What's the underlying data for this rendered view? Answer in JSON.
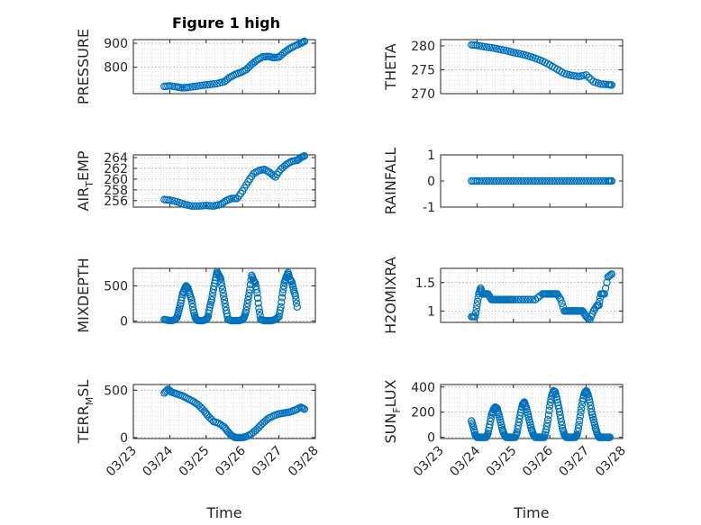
{
  "figure": {
    "title": "Figure 1 high",
    "marker_color": "#0072BD"
  },
  "chart_data": [
    {
      "id": "pressure",
      "type": "scatter",
      "title": "Figure 1 high",
      "ylabel": "PRESSURE",
      "xlabel": "",
      "ylim": [
        690,
        915
      ],
      "yticks": [
        800,
        900
      ],
      "ytick_labels": [
        "800",
        "900"
      ],
      "grid": true,
      "xticks_shown": false,
      "series": [
        {
          "x": [
            23.85,
            24.0,
            24.2,
            24.35,
            24.5,
            24.7,
            24.9,
            25.1,
            25.3,
            25.5,
            25.65,
            25.8,
            25.95,
            26.1,
            26.25,
            26.4,
            26.55,
            26.7,
            26.85,
            27.0,
            27.15,
            27.3,
            27.45,
            27.6,
            27.7
          ],
          "y": [
            720,
            722,
            718,
            714,
            716,
            720,
            725,
            728,
            732,
            740,
            758,
            770,
            778,
            790,
            812,
            830,
            843,
            845,
            840,
            842,
            862,
            878,
            890,
            900,
            908
          ]
        }
      ]
    },
    {
      "id": "theta",
      "type": "scatter",
      "ylabel": "THETA",
      "xlabel": "",
      "ylim": [
        270,
        281.3
      ],
      "yticks": [
        270,
        275,
        280
      ],
      "ytick_labels": [
        "270",
        "275",
        "280"
      ],
      "grid": true,
      "xticks_shown": false,
      "series": [
        {
          "x": [
            23.85,
            24.0,
            24.2,
            24.4,
            24.6,
            24.8,
            25.0,
            25.2,
            25.4,
            25.6,
            25.8,
            26.0,
            26.2,
            26.4,
            26.6,
            26.8,
            27.0,
            27.2,
            27.4,
            27.6,
            27.7
          ],
          "y": [
            280.2,
            280.1,
            279.8,
            279.6,
            279.3,
            279.0,
            278.6,
            278.3,
            277.9,
            277.4,
            276.8,
            276.0,
            275.1,
            274.2,
            273.8,
            273.6,
            273.9,
            272.5,
            272.0,
            271.9,
            271.8
          ]
        }
      ]
    },
    {
      "id": "air_temp",
      "type": "scatter",
      "ylabel": "AIR_TEMP",
      "ylabel_main": "AIR",
      "ylabel_sub": "T",
      "ylabel_rest": "EMP",
      "xlabel": "",
      "ylim": [
        254.8,
        264.5
      ],
      "yticks": [
        256,
        258,
        260,
        262,
        264
      ],
      "ytick_labels": [
        "256",
        "258",
        "260",
        "262",
        "264"
      ],
      "grid": true,
      "xticks_shown": false,
      "series": [
        {
          "x": [
            23.85,
            24.0,
            24.2,
            24.4,
            24.6,
            24.8,
            25.0,
            25.2,
            25.4,
            25.55,
            25.7,
            25.85,
            26.0,
            26.15,
            26.3,
            26.45,
            26.6,
            26.75,
            26.9,
            27.05,
            27.2,
            27.35,
            27.5,
            27.6,
            27.7
          ],
          "y": [
            256.2,
            256.1,
            255.8,
            255.3,
            255.0,
            255.0,
            255.1,
            255.0,
            255.3,
            256.0,
            256.4,
            256.4,
            257.8,
            259.5,
            261.0,
            261.6,
            261.8,
            261.2,
            260.4,
            261.8,
            262.7,
            263.3,
            263.5,
            264.0,
            264.3
          ]
        }
      ]
    },
    {
      "id": "rainfall",
      "type": "scatter",
      "ylabel": "RAINFALL",
      "xlabel": "",
      "ylim": [
        -1,
        1
      ],
      "yticks": [
        -1,
        0,
        1
      ],
      "ytick_labels": [
        "-1",
        "0",
        "1"
      ],
      "grid": false,
      "xticks_shown": false,
      "series": [
        {
          "x": [
            23.85,
            24.0,
            24.2,
            24.4,
            24.6,
            24.8,
            25.0,
            25.2,
            25.4,
            25.6,
            25.8,
            26.0,
            26.2,
            26.4,
            26.6,
            26.8,
            27.0,
            27.2,
            27.4,
            27.6,
            27.7
          ],
          "y": [
            0,
            0,
            0,
            0,
            0,
            0,
            0,
            0,
            0,
            0,
            0,
            0,
            0,
            0,
            0,
            0,
            0,
            0,
            0,
            0,
            0
          ]
        }
      ]
    },
    {
      "id": "mixdepth",
      "type": "scatter",
      "ylabel": "MIXDEPTH",
      "xlabel": "",
      "ylim": [
        -20,
        750
      ],
      "yticks": [
        0,
        500
      ],
      "ytick_labels": [
        "0",
        "500"
      ],
      "grid": true,
      "xticks_shown": false,
      "series": [
        {
          "x": [
            23.85,
            23.95,
            24.05,
            24.15,
            24.2,
            24.25,
            24.3,
            24.35,
            24.4,
            24.45,
            24.5,
            24.55,
            24.6,
            24.65,
            24.7,
            24.75,
            24.8,
            24.9,
            25.0,
            25.05,
            25.1,
            25.15,
            25.2,
            25.25,
            25.3,
            25.35,
            25.4,
            25.45,
            25.5,
            25.55,
            25.6,
            25.7,
            25.8,
            25.9,
            26.0,
            26.05,
            26.1,
            26.15,
            26.2,
            26.25,
            26.3,
            26.35,
            26.4,
            26.45,
            26.5,
            26.6,
            26.7,
            26.8,
            26.9,
            27.0,
            27.05,
            27.1,
            27.15,
            27.2,
            27.25,
            27.3,
            27.35,
            27.4,
            27.45,
            27.5
          ],
          "y": [
            20,
            10,
            5,
            20,
            50,
            150,
            250,
            380,
            450,
            500,
            470,
            380,
            300,
            150,
            50,
            10,
            5,
            5,
            20,
            60,
            200,
            300,
            450,
            580,
            700,
            650,
            600,
            450,
            300,
            150,
            20,
            5,
            5,
            5,
            20,
            60,
            150,
            300,
            450,
            650,
            580,
            540,
            400,
            180,
            20,
            5,
            5,
            5,
            20,
            60,
            200,
            400,
            550,
            620,
            690,
            600,
            560,
            450,
            360,
            200
          ]
        }
      ]
    },
    {
      "id": "h2omixra",
      "type": "scatter",
      "ylabel": "H2OMIXRA",
      "xlabel": "",
      "ylim": [
        0.8,
        1.75
      ],
      "yticks": [
        1,
        1.5
      ],
      "ytick_labels": [
        "1",
        "1.5"
      ],
      "grid": true,
      "xticks_shown": false,
      "series": [
        {
          "x": [
            23.85,
            23.95,
            24.0,
            24.05,
            24.1,
            24.15,
            24.2,
            24.3,
            24.4,
            24.5,
            24.6,
            24.7,
            24.8,
            24.9,
            25.0,
            25.2,
            25.4,
            25.6,
            25.8,
            25.9,
            26.0,
            26.1,
            26.2,
            26.3,
            26.4,
            26.5,
            26.6,
            26.7,
            26.8,
            26.9,
            27.0,
            27.1,
            27.2,
            27.3,
            27.35,
            27.4,
            27.5,
            27.6,
            27.7
          ],
          "y": [
            0.9,
            0.9,
            1.1,
            1.3,
            1.4,
            1.3,
            1.3,
            1.3,
            1.2,
            1.2,
            1.2,
            1.2,
            1.2,
            1.2,
            1.2,
            1.2,
            1.2,
            1.2,
            1.3,
            1.3,
            1.3,
            1.3,
            1.3,
            1.2,
            1.0,
            1.0,
            1.0,
            1.0,
            1.0,
            1.0,
            0.9,
            0.85,
            1.0,
            1.1,
            1.1,
            1.3,
            1.3,
            1.6,
            1.65
          ]
        }
      ]
    },
    {
      "id": "terr_msl",
      "type": "scatter",
      "ylabel": "TERR_MSL",
      "ylabel_main": "TERR",
      "ylabel_sub": "M",
      "ylabel_rest": "SL",
      "xlabel": "Time",
      "ylim": [
        -10,
        560
      ],
      "yticks": [
        0,
        500
      ],
      "ytick_labels": [
        "0",
        "500"
      ],
      "grid": true,
      "xticks_shown": true,
      "xlim": [
        23,
        28
      ],
      "xticks": [
        23,
        24,
        25,
        26,
        27,
        28
      ],
      "xtick_labels": [
        "03/23",
        "03/24",
        "03/25",
        "03/26",
        "03/27",
        "03/28"
      ],
      "series": [
        {
          "x": [
            23.85,
            23.95,
            24.05,
            24.2,
            24.35,
            24.5,
            24.65,
            24.8,
            24.95,
            25.05,
            25.2,
            25.35,
            25.5,
            25.6,
            25.7,
            25.8,
            25.9,
            26.0,
            26.1,
            26.25,
            26.4,
            26.55,
            26.7,
            26.85,
            27.0,
            27.15,
            27.3,
            27.45,
            27.6,
            27.7
          ],
          "y": [
            470,
            510,
            480,
            460,
            440,
            410,
            380,
            340,
            280,
            230,
            170,
            150,
            110,
            60,
            20,
            0,
            0,
            0,
            10,
            40,
            90,
            150,
            200,
            230,
            250,
            260,
            270,
            290,
            320,
            300
          ]
        }
      ]
    },
    {
      "id": "sun_flux",
      "type": "scatter",
      "ylabel": "SUN_FLUX",
      "ylabel_main": "SUN",
      "ylabel_sub": "F",
      "ylabel_rest": "LUX",
      "xlabel": "Time",
      "ylim": [
        -10,
        420
      ],
      "yticks": [
        0,
        200,
        400
      ],
      "ytick_labels": [
        "0",
        "200",
        "400"
      ],
      "grid": true,
      "xticks_shown": true,
      "xlim": [
        23,
        28
      ],
      "xticks": [
        23,
        24,
        25,
        26,
        27,
        28
      ],
      "xtick_labels": [
        "03/23",
        "03/24",
        "03/25",
        "03/26",
        "03/27",
        "03/28"
      ],
      "series": [
        {
          "x": [
            23.85,
            23.9,
            23.95,
            24.0,
            24.05,
            24.1,
            24.15,
            24.2,
            24.25,
            24.3,
            24.35,
            24.4,
            24.45,
            24.5,
            24.55,
            24.6,
            24.65,
            24.7,
            24.75,
            24.8,
            24.85,
            24.9,
            24.95,
            25.0,
            25.05,
            25.1,
            25.15,
            25.2,
            25.25,
            25.3,
            25.35,
            25.4,
            25.45,
            25.5,
            25.55,
            25.6,
            25.65,
            25.7,
            25.75,
            25.8,
            25.85,
            25.9,
            25.95,
            26.0,
            26.05,
            26.1,
            26.15,
            26.2,
            26.25,
            26.3,
            26.35,
            26.4,
            26.45,
            26.5,
            26.55,
            26.6,
            26.65,
            26.7,
            26.75,
            26.8,
            26.85,
            26.9,
            26.95,
            27.0,
            27.05,
            27.1,
            27.15,
            27.2,
            27.25,
            27.3,
            27.35,
            27.4,
            27.45,
            27.5,
            27.55,
            27.6,
            27.65
          ],
          "y": [
            130,
            80,
            20,
            0,
            0,
            0,
            0,
            0,
            0,
            30,
            100,
            180,
            220,
            240,
            230,
            180,
            120,
            60,
            20,
            0,
            0,
            0,
            0,
            0,
            0,
            40,
            120,
            200,
            260,
            280,
            240,
            180,
            120,
            60,
            20,
            0,
            0,
            0,
            0,
            0,
            0,
            60,
            140,
            250,
            330,
            370,
            360,
            300,
            230,
            150,
            70,
            20,
            0,
            0,
            0,
            0,
            0,
            0,
            20,
            100,
            200,
            290,
            350,
            370,
            340,
            280,
            200,
            140,
            80,
            30,
            0,
            0,
            0,
            0,
            0,
            0,
            0
          ]
        }
      ]
    }
  ]
}
